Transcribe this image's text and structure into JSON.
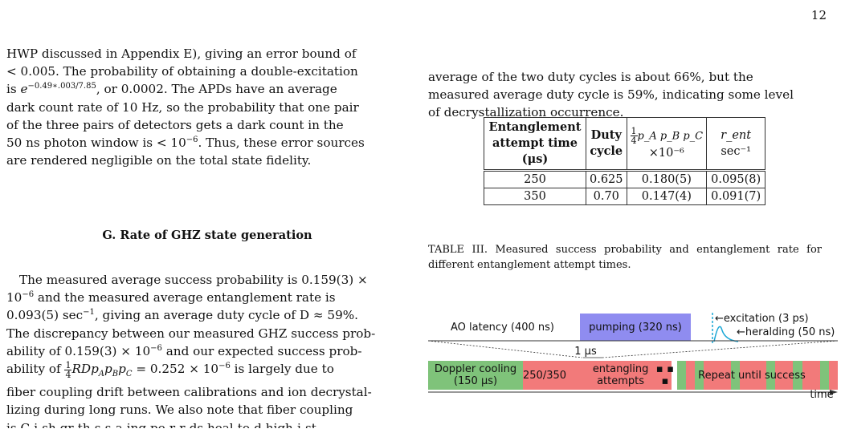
{
  "page_number": "12",
  "left": {
    "p1": {
      "a": "HWP discussed in Appendix E), giving an error bound of",
      "b": "< 0.005. The probability of obtaining a double-excitation",
      "c_pre": "is ",
      "c_base": "e",
      "c_exp": "−0.49∗.003/7.85",
      "c_post": ", or 0.0002. The APDs have an average",
      "d": "dark count rate of 10 Hz, so the probability that one pair",
      "e": "of the three pairs of detectors gets a dark count in the",
      "f_pre": "50 ns photon window is < 10",
      "f_exp": "−6",
      "f_post": ". Thus, these error sources",
      "g": "are rendered negligible on the total state fidelity."
    },
    "heading": "G.    Rate of GHZ state generation",
    "p2": {
      "a": "The measured average success probability is 0.159(3) ×",
      "b_pre": "10",
      "b_exp": "−6",
      "b_post": " and the measured average entanglement rate is",
      "c_pre": "0.093(5) sec",
      "c_exp": "−1",
      "c_post": ", giving an average duty cycle of D ≈ 59%.",
      "d": "The discrepancy between our measured GHZ success prob-",
      "e_pre": "ability of 0.159(3) × 10",
      "e_exp": "−6",
      "e_post": " and our expected success prob-",
      "f_pre": "ability of ",
      "f_num": "1",
      "f_den": "4",
      "f_mid": "RDp",
      "f_sub1": "A",
      "f_p2": "p",
      "f_sub2": "B",
      "f_p3": "p",
      "f_sub3": "C",
      "f_eq": " = 0.252 × 10",
      "f_exp": "−6",
      "f_post": " is largely due to",
      "g": "fiber coupling drift between calibrations and ion decrystal-",
      "h": "lizing during long runs. We also note that fiber coupling",
      "i": "is C-i-sh gr-th-s-s-a-ing pe-r-r-ds heal-to-d high-i-st"
    }
  },
  "right": {
    "p1": {
      "a": "average of the two duty cycles is about 66%, but the",
      "b": "measured average duty cycle is 59%, indicating some level",
      "c": "of decrystallization occurrence."
    },
    "table": {
      "h1": [
        "Entanglement",
        "attempt time",
        "(μs)"
      ],
      "h2": [
        "Duty",
        "cycle"
      ],
      "h3_num": "1",
      "h3_den": "4",
      "h3_expr": "p_A p_B p_C",
      "h3_unit": "×10⁻⁶",
      "h4_top": "r_ent",
      "h4_bot": "sec⁻¹",
      "rows": [
        [
          "250",
          "0.625",
          "0.180(5)",
          "0.095(8)"
        ],
        [
          "350",
          "0.70",
          "0.147(4)",
          "0.091(7)"
        ]
      ]
    },
    "caption": "TABLE III. Measured success probability and entanglement rate for different entanglement attempt times."
  },
  "figure": {
    "ao_latency": "AO latency (400 ns)",
    "pumping": "pumping (320 ns)",
    "excitation": "excitation (3 ps)",
    "heralding": "heralding (50 ns)",
    "one_us": "1 μs",
    "doppler": "Doppler cooling (150 μs)",
    "attempt_time": "250/350",
    "entangling": "entangling attempts",
    "ellipsis": "▪ ▪ ▪",
    "repeat": "Repeat until success",
    "time": "time",
    "colors": {
      "green": "#7fc37a",
      "red": "#f27a7a",
      "purple": "#8f8cf0",
      "blue": "#1aa7d6"
    }
  }
}
